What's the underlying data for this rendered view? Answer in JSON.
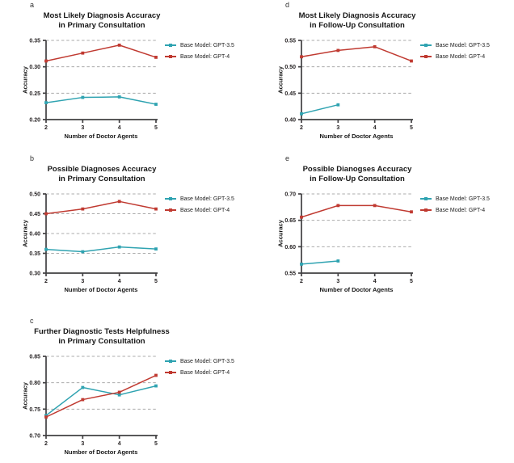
{
  "figure": {
    "background": "#FFFFFF",
    "axis_color": "#414042",
    "grid_color": "#ABABAB",
    "text_color": "#231F20",
    "accent_teal": "#2FA3B1",
    "accent_red": "#C03A31"
  },
  "chart_data": [
    {
      "type": "line",
      "panel_letter": "a",
      "title_line1": "Most Likely Diagnosis Accuracy",
      "title_line2": "in Primary Consultation",
      "xlabel": "Number of Doctor Agents",
      "ylabel": "Accuracy",
      "x": [
        2,
        3,
        4,
        5
      ],
      "ylim": [
        0.2,
        0.35
      ],
      "yticks": [
        "0.20",
        "0.25",
        "0.30",
        "0.35"
      ],
      "grid": "horizontal dashed at yticks",
      "legend_position": "right",
      "series": [
        {
          "name": "Base Model: GPT-3.5",
          "color": "#2FA3B1",
          "values": [
            0.232,
            0.242,
            0.243,
            0.229
          ]
        },
        {
          "name": "Base Model: GPT-4",
          "color": "#C03A31",
          "values": [
            0.311,
            0.326,
            0.341,
            0.318
          ]
        }
      ]
    },
    {
      "type": "line",
      "panel_letter": "b",
      "title_line1": "Possible Diagnoses Accuracy",
      "title_line2": "in Primary Consultation",
      "xlabel": "Number of Doctor Agents",
      "ylabel": "Accuracy",
      "x": [
        2,
        3,
        4,
        5
      ],
      "ylim": [
        0.3,
        0.5
      ],
      "yticks": [
        "0.30",
        "0.35",
        "0.40",
        "0.45",
        "0.50"
      ],
      "grid": "horizontal dashed at yticks",
      "legend_position": "right",
      "series": [
        {
          "name": "Base Model: GPT-3.5",
          "color": "#2FA3B1",
          "values": [
            0.36,
            0.354,
            0.366,
            0.361
          ]
        },
        {
          "name": "Base Model: GPT-4",
          "color": "#C03A31",
          "values": [
            0.45,
            0.462,
            0.481,
            0.462
          ]
        }
      ]
    },
    {
      "type": "line",
      "panel_letter": "c",
      "title_line1": "Further Diagnostic Tests Helpfulness",
      "title_line2": "in Primary Consultation",
      "xlabel": "Number of Doctor Agents",
      "ylabel": "Accuracy",
      "x": [
        2,
        3,
        4,
        5
      ],
      "ylim": [
        0.7,
        0.85
      ],
      "yticks": [
        "0.70",
        "0.75",
        "0.80",
        "0.85"
      ],
      "grid": "horizontal dashed at yticks",
      "legend_position": "right",
      "series": [
        {
          "name": "Base Model: GPT-3.5",
          "color": "#2FA3B1",
          "values": [
            0.738,
            0.791,
            0.777,
            0.794
          ]
        },
        {
          "name": "Base Model: GPT-4",
          "color": "#C03A31",
          "values": [
            0.735,
            0.768,
            0.782,
            0.814
          ]
        }
      ]
    },
    {
      "type": "line",
      "panel_letter": "d",
      "title_line1": "Most Likely Diagnosis Accuracy",
      "title_line2": "in Follow-Up Consultation",
      "xlabel": "Number of Doctor Agents",
      "ylabel": "Accuracy",
      "x": [
        2,
        3,
        4,
        5
      ],
      "ylim": [
        0.4,
        0.55
      ],
      "yticks": [
        "0.40",
        "0.45",
        "0.50",
        "0.55"
      ],
      "grid": "horizontal dashed at yticks",
      "legend_position": "right",
      "series": [
        {
          "name": "Base Model: GPT-3.5",
          "color": "#2FA3B1",
          "values": [
            0.411,
            0.428,
            null,
            null
          ]
        },
        {
          "name": "Base Model: GPT-4",
          "color": "#C03A31",
          "values": [
            0.519,
            0.531,
            0.538,
            0.511
          ]
        }
      ]
    },
    {
      "type": "line",
      "panel_letter": "e",
      "title_line1": "Possible Dianogses Accuracy",
      "title_line2": "in Follow-Up Consultation",
      "xlabel": "Number of Doctor Agents",
      "ylabel": "Accuracy",
      "x": [
        2,
        3,
        4,
        5
      ],
      "ylim": [
        0.55,
        0.7
      ],
      "yticks": [
        "0.55",
        "0.60",
        "0.65",
        "0.70"
      ],
      "grid": "horizontal dashed at yticks",
      "legend_position": "right",
      "series": [
        {
          "name": "Base Model: GPT-3.5",
          "color": "#2FA3B1",
          "values": [
            0.567,
            0.573,
            null,
            null
          ]
        },
        {
          "name": "Base Model: GPT-4",
          "color": "#C03A31",
          "values": [
            0.656,
            0.678,
            0.678,
            0.666
          ]
        }
      ]
    }
  ]
}
